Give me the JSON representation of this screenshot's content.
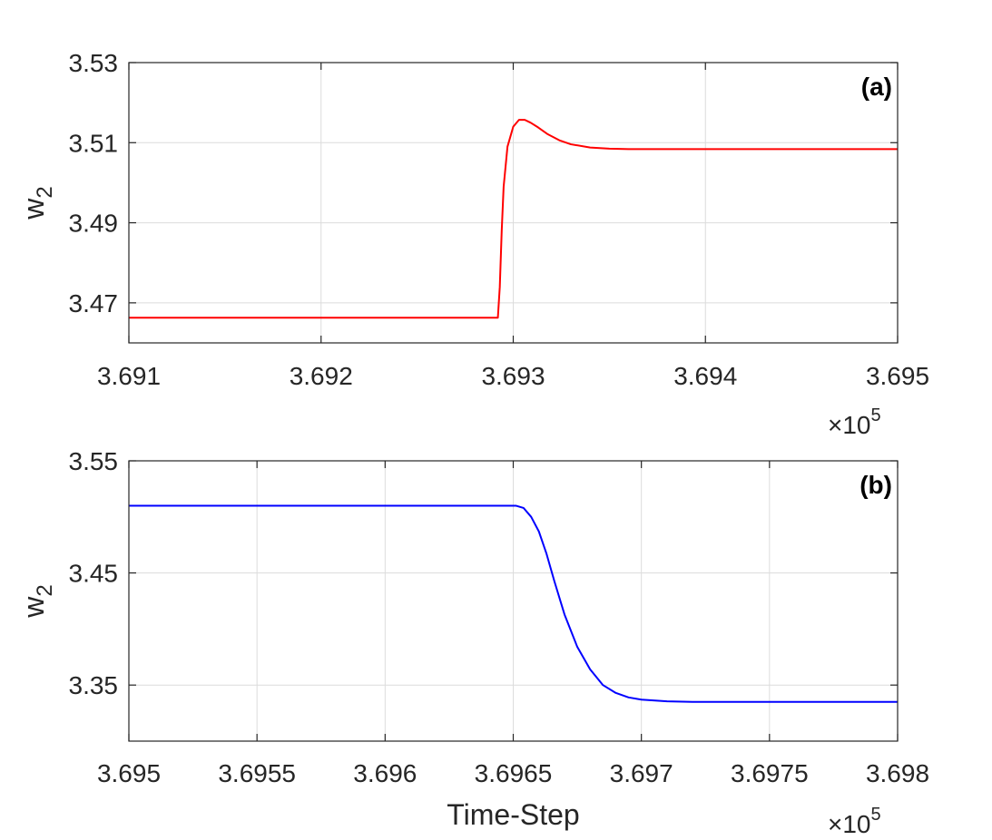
{
  "chart_data": [
    {
      "type": "line",
      "panel_label": "(a)",
      "xlabel": "",
      "ylabel": "w",
      "ylabel_subscript": "2",
      "xlim": [
        369100,
        369500
      ],
      "ylim": [
        3.46,
        3.53
      ],
      "x_ticks": [
        369100,
        369200,
        369300,
        369400,
        369500
      ],
      "x_tick_labels": [
        "3.691",
        "3.692",
        "3.693",
        "3.694",
        "3.695"
      ],
      "y_ticks": [
        3.47,
        3.49,
        3.51,
        3.53
      ],
      "y_tick_labels": [
        "3.47",
        "3.49",
        "3.51",
        "3.53"
      ],
      "x_exponent_base": "×10",
      "x_exponent_power": "5",
      "grid": true,
      "series": [
        {
          "color": "#ff0000",
          "x": [
            369100,
            369200,
            369250,
            369292,
            369293,
            369294,
            369295,
            369297,
            369300,
            369303,
            369306,
            369309,
            369313,
            369318,
            369324,
            369330,
            369340,
            369350,
            369360,
            369370,
            369380,
            369400,
            369450,
            369500
          ],
          "y": [
            3.4663,
            3.4663,
            3.4663,
            3.4663,
            3.474,
            3.488,
            3.499,
            3.509,
            3.514,
            3.5157,
            3.5157,
            3.515,
            3.5138,
            3.5121,
            3.5106,
            3.5096,
            3.5088,
            3.5085,
            3.5084,
            3.5084,
            3.5084,
            3.5084,
            3.5084,
            3.5084
          ]
        }
      ]
    },
    {
      "type": "line",
      "panel_label": "(b)",
      "xlabel": "Time-Step",
      "ylabel": "w",
      "ylabel_subscript": "2",
      "xlim": [
        369500,
        369800
      ],
      "ylim": [
        3.3,
        3.55
      ],
      "x_ticks": [
        369500,
        369550,
        369600,
        369650,
        369700,
        369750,
        369800
      ],
      "x_tick_labels": [
        "3.695",
        "3.6955",
        "3.696",
        "3.6965",
        "3.697",
        "3.6975",
        "3.698"
      ],
      "y_ticks": [
        3.35,
        3.45,
        3.55
      ],
      "y_tick_labels": [
        "3.35",
        "3.45",
        "3.55"
      ],
      "x_exponent_base": "×10",
      "x_exponent_power": "5",
      "grid": true,
      "series": [
        {
          "color": "#0000ff",
          "x": [
            369500,
            369600,
            369651,
            369654,
            369657,
            369660,
            369663,
            369666,
            369670,
            369675,
            369680,
            369685,
            369690,
            369695,
            369700,
            369710,
            369720,
            369740,
            369760,
            369800
          ],
          "y": [
            3.51,
            3.51,
            3.51,
            3.508,
            3.5,
            3.487,
            3.467,
            3.443,
            3.413,
            3.384,
            3.364,
            3.35,
            3.343,
            3.339,
            3.337,
            3.3355,
            3.335,
            3.335,
            3.335,
            3.335
          ]
        }
      ]
    }
  ]
}
